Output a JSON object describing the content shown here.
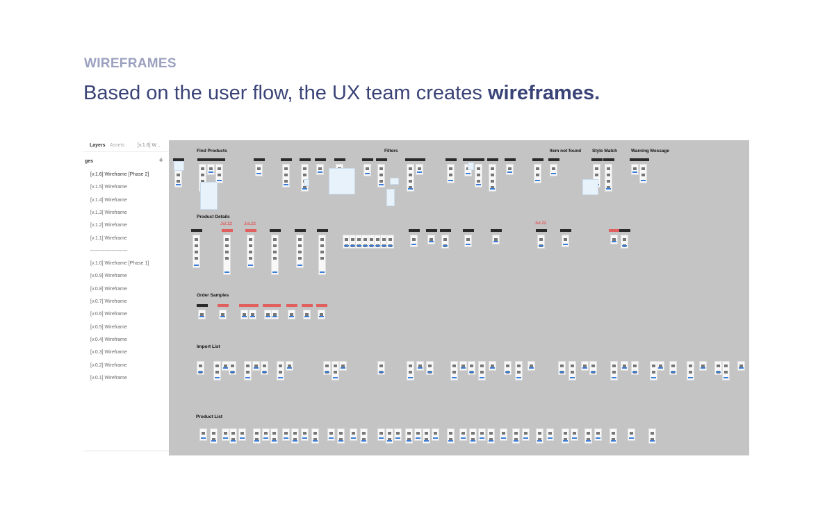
{
  "header": {
    "eyebrow": "WIREFRAMES",
    "headline_prefix": "Based on the user flow, the UX team creates ",
    "headline_bold": "wireframes."
  },
  "sidebar": {
    "tabs": [
      "Layers",
      "Assets"
    ],
    "current_page": "[v.1.6] W...",
    "pages_heading": "ges",
    "add_icon": "plus-icon",
    "pages": [
      "[v.1.6] Wireframe [Phase 2]",
      "[v.1.5] Wireframe",
      "[v.1.4] Wireframe",
      "[v.1.3] Wireframe",
      "[v.1.2] Wireframe",
      "[v.1.1] Wireframe",
      "-----------------------",
      "[v.1.0] Wireframe [Phase 1]",
      "[v.0.9] Wireframe",
      "[v.0.8] Wireframe",
      "[v.0.7] Wireframe",
      "[v.0.6] Wireframe",
      "[v.0.5] Wireframe",
      "[v.0.4] Wireframe",
      "[v.0.3] Wireframe",
      "[v.0.2] Wireframe",
      "[v.0.1] Wireframe"
    ]
  },
  "canvas": {
    "sections": [
      "Find Products",
      "Filters",
      "Item not found",
      "Style Match",
      "Warning Message",
      "Product Details",
      "Order Samples",
      "Import List",
      "Product List"
    ],
    "date_badges": [
      "Jul.22",
      "Jul.22",
      "Jul.22"
    ],
    "colors": {
      "canvas": "#c4c4c4",
      "badge": "#e06060",
      "accent": "#3a4377"
    }
  }
}
